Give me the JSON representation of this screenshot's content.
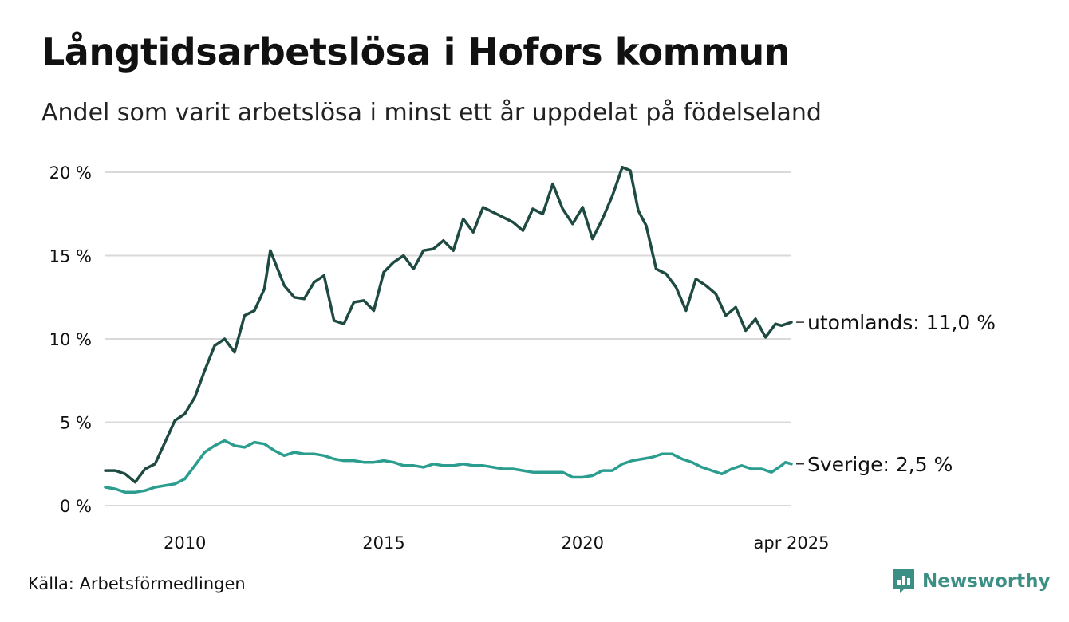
{
  "header": {
    "title": "Långtidsarbetslösa i Hofors kommun",
    "subtitle": "Andel som varit arbetslösa i minst ett år uppdelat på födelseland"
  },
  "footer": {
    "source": "Källa: Arbetsförmedlingen",
    "brand": "Newsworthy",
    "brand_icon": "newsworthy-logo-icon"
  },
  "colors": {
    "utomlands": "#1e4a42",
    "sverige": "#2a9d8f",
    "grid": "#d9d9d9",
    "brand": "#3c8f84"
  },
  "chart_data": {
    "type": "line",
    "x_ticks": [
      {
        "x": 2010.0,
        "label": "2010"
      },
      {
        "x": 2015.0,
        "label": "2015"
      },
      {
        "x": 2020.0,
        "label": "2020"
      },
      {
        "x": 2025.25,
        "label": "apr 2025"
      }
    ],
    "y_ticks": [
      {
        "value": 0,
        "label": "0 %"
      },
      {
        "value": 5,
        "label": "5 %"
      },
      {
        "value": 10,
        "label": "10 %"
      },
      {
        "value": 15,
        "label": "15 %"
      },
      {
        "value": 20,
        "label": "20 %"
      }
    ],
    "xlim": [
      2008.0,
      2025.25
    ],
    "ylim": [
      0,
      20
    ],
    "grid": true,
    "series": [
      {
        "name": "utomlands",
        "end_label": "utomlands: 11,0 %",
        "color": "#1e4a42",
        "points": [
          [
            2008.0,
            2.1
          ],
          [
            2008.25,
            2.1
          ],
          [
            2008.5,
            1.9
          ],
          [
            2008.75,
            1.4
          ],
          [
            2009.0,
            2.2
          ],
          [
            2009.25,
            2.5
          ],
          [
            2009.5,
            3.8
          ],
          [
            2009.75,
            5.1
          ],
          [
            2010.0,
            5.5
          ],
          [
            2010.25,
            6.5
          ],
          [
            2010.5,
            8.1
          ],
          [
            2010.75,
            9.6
          ],
          [
            2011.0,
            10.0
          ],
          [
            2011.25,
            9.2
          ],
          [
            2011.5,
            11.4
          ],
          [
            2011.75,
            11.7
          ],
          [
            2012.0,
            13.0
          ],
          [
            2012.15,
            15.3
          ],
          [
            2012.5,
            13.2
          ],
          [
            2012.75,
            12.5
          ],
          [
            2013.0,
            12.4
          ],
          [
            2013.25,
            13.4
          ],
          [
            2013.5,
            13.8
          ],
          [
            2013.75,
            11.1
          ],
          [
            2014.0,
            10.9
          ],
          [
            2014.25,
            12.2
          ],
          [
            2014.5,
            12.3
          ],
          [
            2014.75,
            11.7
          ],
          [
            2015.0,
            14.0
          ],
          [
            2015.25,
            14.6
          ],
          [
            2015.5,
            15.0
          ],
          [
            2015.75,
            14.2
          ],
          [
            2016.0,
            15.3
          ],
          [
            2016.25,
            15.4
          ],
          [
            2016.5,
            15.9
          ],
          [
            2016.75,
            15.3
          ],
          [
            2017.0,
            17.2
          ],
          [
            2017.25,
            16.4
          ],
          [
            2017.5,
            17.9
          ],
          [
            2017.75,
            17.6
          ],
          [
            2018.0,
            17.3
          ],
          [
            2018.25,
            17.0
          ],
          [
            2018.5,
            16.5
          ],
          [
            2018.75,
            17.8
          ],
          [
            2019.0,
            17.5
          ],
          [
            2019.25,
            19.3
          ],
          [
            2019.5,
            17.8
          ],
          [
            2019.75,
            16.9
          ],
          [
            2020.0,
            17.9
          ],
          [
            2020.25,
            16.0
          ],
          [
            2020.5,
            17.2
          ],
          [
            2020.75,
            18.6
          ],
          [
            2021.0,
            20.3
          ],
          [
            2021.2,
            20.1
          ],
          [
            2021.4,
            17.7
          ],
          [
            2021.6,
            16.8
          ],
          [
            2021.85,
            14.2
          ],
          [
            2022.1,
            13.9
          ],
          [
            2022.35,
            13.1
          ],
          [
            2022.6,
            11.7
          ],
          [
            2022.85,
            13.6
          ],
          [
            2023.1,
            13.2
          ],
          [
            2023.35,
            12.7
          ],
          [
            2023.6,
            11.4
          ],
          [
            2023.85,
            11.9
          ],
          [
            2024.1,
            10.5
          ],
          [
            2024.35,
            11.2
          ],
          [
            2024.6,
            10.1
          ],
          [
            2024.85,
            10.9
          ],
          [
            2025.0,
            10.8
          ],
          [
            2025.25,
            11.0
          ]
        ]
      },
      {
        "name": "Sverige",
        "end_label": "Sverige:  2,5 %",
        "color": "#2a9d8f",
        "points": [
          [
            2008.0,
            1.1
          ],
          [
            2008.25,
            1.0
          ],
          [
            2008.5,
            0.8
          ],
          [
            2008.75,
            0.8
          ],
          [
            2009.0,
            0.9
          ],
          [
            2009.25,
            1.1
          ],
          [
            2009.5,
            1.2
          ],
          [
            2009.75,
            1.3
          ],
          [
            2010.0,
            1.6
          ],
          [
            2010.25,
            2.4
          ],
          [
            2010.5,
            3.2
          ],
          [
            2010.75,
            3.6
          ],
          [
            2011.0,
            3.9
          ],
          [
            2011.25,
            3.6
          ],
          [
            2011.5,
            3.5
          ],
          [
            2011.75,
            3.8
          ],
          [
            2012.0,
            3.7
          ],
          [
            2012.25,
            3.3
          ],
          [
            2012.5,
            3.0
          ],
          [
            2012.75,
            3.2
          ],
          [
            2013.0,
            3.1
          ],
          [
            2013.25,
            3.1
          ],
          [
            2013.5,
            3.0
          ],
          [
            2013.75,
            2.8
          ],
          [
            2014.0,
            2.7
          ],
          [
            2014.25,
            2.7
          ],
          [
            2014.5,
            2.6
          ],
          [
            2014.75,
            2.6
          ],
          [
            2015.0,
            2.7
          ],
          [
            2015.25,
            2.6
          ],
          [
            2015.5,
            2.4
          ],
          [
            2015.75,
            2.4
          ],
          [
            2016.0,
            2.3
          ],
          [
            2016.25,
            2.5
          ],
          [
            2016.5,
            2.4
          ],
          [
            2016.75,
            2.4
          ],
          [
            2017.0,
            2.5
          ],
          [
            2017.25,
            2.4
          ],
          [
            2017.5,
            2.4
          ],
          [
            2017.75,
            2.3
          ],
          [
            2018.0,
            2.2
          ],
          [
            2018.25,
            2.2
          ],
          [
            2018.5,
            2.1
          ],
          [
            2018.75,
            2.0
          ],
          [
            2019.0,
            2.0
          ],
          [
            2019.25,
            2.0
          ],
          [
            2019.5,
            2.0
          ],
          [
            2019.75,
            1.7
          ],
          [
            2020.0,
            1.7
          ],
          [
            2020.25,
            1.8
          ],
          [
            2020.5,
            2.1
          ],
          [
            2020.75,
            2.1
          ],
          [
            2021.0,
            2.5
          ],
          [
            2021.25,
            2.7
          ],
          [
            2021.5,
            2.8
          ],
          [
            2021.75,
            2.9
          ],
          [
            2022.0,
            3.1
          ],
          [
            2022.25,
            3.1
          ],
          [
            2022.5,
            2.8
          ],
          [
            2022.75,
            2.6
          ],
          [
            2023.0,
            2.3
          ],
          [
            2023.25,
            2.1
          ],
          [
            2023.5,
            1.9
          ],
          [
            2023.75,
            2.2
          ],
          [
            2024.0,
            2.4
          ],
          [
            2024.25,
            2.2
          ],
          [
            2024.5,
            2.2
          ],
          [
            2024.75,
            2.0
          ],
          [
            2025.0,
            2.4
          ],
          [
            2025.1,
            2.6
          ],
          [
            2025.25,
            2.5
          ]
        ]
      }
    ]
  }
}
